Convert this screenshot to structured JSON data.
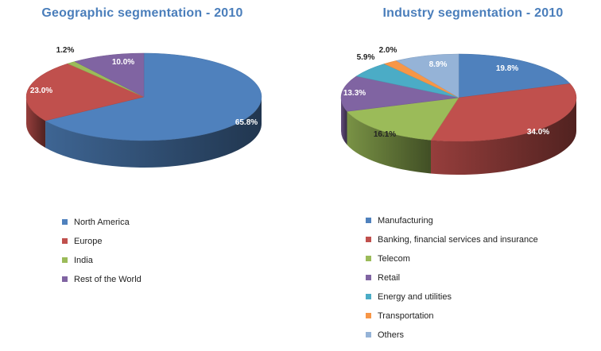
{
  "chart_data": [
    {
      "type": "pie",
      "title": "Geographic segmentation - 2010",
      "labels": [
        "North America",
        "Europe",
        "India",
        "Rest of the World"
      ],
      "values": [
        65.8,
        23.0,
        1.2,
        10.0
      ],
      "value_labels": [
        "65.8%",
        "23.0%",
        "1.2%",
        "10.0%"
      ],
      "colors": [
        "#4f81bd",
        "#c0504d",
        "#9bbb59",
        "#8064a2"
      ],
      "legend_position": "bottom"
    },
    {
      "type": "pie",
      "title": "Industry segmentation - 2010",
      "labels": [
        "Manufacturing",
        "Banking, financial services and insurance",
        "Telecom",
        "Retail",
        "Energy and utilities",
        "Transportation",
        "Others"
      ],
      "values": [
        19.8,
        34.0,
        16.1,
        13.3,
        5.9,
        2.0,
        8.9
      ],
      "value_labels": [
        "19.8%",
        "34.0%",
        "16.1%",
        "13.3%",
        "5.9%",
        "2.0%",
        "8.9%"
      ],
      "colors": [
        "#4f81bd",
        "#c0504d",
        "#9bbb59",
        "#8064a2",
        "#4bacc6",
        "#f79646",
        "#95b3d7"
      ],
      "legend_position": "bottom"
    }
  ]
}
